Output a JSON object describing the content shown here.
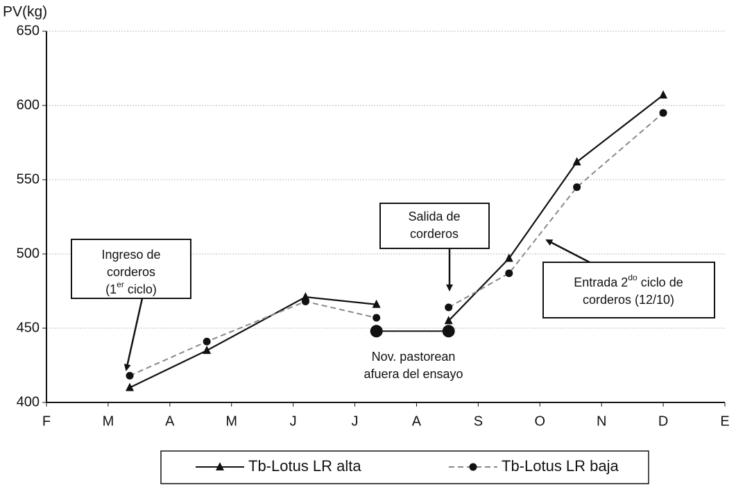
{
  "chart_data": {
    "type": "line",
    "ylabel": "PV(kg)",
    "xlim": [
      0,
      11
    ],
    "xticks": [
      {
        "value": 0,
        "label": "F"
      },
      {
        "value": 1,
        "label": "M"
      },
      {
        "value": 2,
        "label": "A"
      },
      {
        "value": 3,
        "label": "M"
      },
      {
        "value": 4,
        "label": "J"
      },
      {
        "value": 5,
        "label": "J"
      },
      {
        "value": 6,
        "label": "A"
      },
      {
        "value": 7,
        "label": "S"
      },
      {
        "value": 8,
        "label": "O"
      },
      {
        "value": 9,
        "label": "N"
      },
      {
        "value": 10,
        "label": "D"
      },
      {
        "value": 11,
        "label": "E"
      }
    ],
    "ylim": [
      400,
      650
    ],
    "yticks": [
      400,
      450,
      500,
      550,
      600,
      650
    ],
    "grid": true,
    "x": [
      1.35,
      2.6,
      4.2,
      5.35,
      6.52,
      7.5,
      8.6,
      10.0
    ],
    "series": [
      {
        "name": "Tb-Lotus  LR alta",
        "color": "#111111",
        "marker": "triangle",
        "dash": false,
        "values": [
          410,
          435,
          471,
          466,
          455,
          497,
          562,
          607
        ]
      },
      {
        "name": "Tb-Lotus  LR baja",
        "color": "#888888",
        "marker": "circle",
        "dash": true,
        "values": [
          418,
          441,
          468,
          457,
          464,
          487,
          545,
          595
        ]
      }
    ],
    "annotations": [
      {
        "lines": [
          [
            {
              "t": "Ingreso de"
            }
          ],
          [
            {
              "t": "corderos"
            }
          ],
          [
            {
              "t": "(1"
            },
            {
              "t": "er",
              "sup": true
            },
            {
              "t": " ciclo)"
            }
          ]
        ]
      },
      {
        "lines": [
          [
            {
              "t": "Salida de"
            }
          ],
          [
            {
              "t": "corderos"
            }
          ]
        ]
      },
      {
        "lines": [
          [
            {
              "t": "Entrada 2"
            },
            {
              "t": "do",
              "sup": true
            },
            {
              "t": " ciclo de"
            }
          ],
          [
            {
              "t": "corderos (12/10)"
            }
          ]
        ]
      },
      {
        "lines": [
          [
            {
              "t": "Nov. pastorean"
            }
          ],
          [
            {
              "t": "afuera del ensayo"
            }
          ]
        ],
        "x": [
          5.35,
          6.52
        ],
        "y": 448
      }
    ]
  }
}
